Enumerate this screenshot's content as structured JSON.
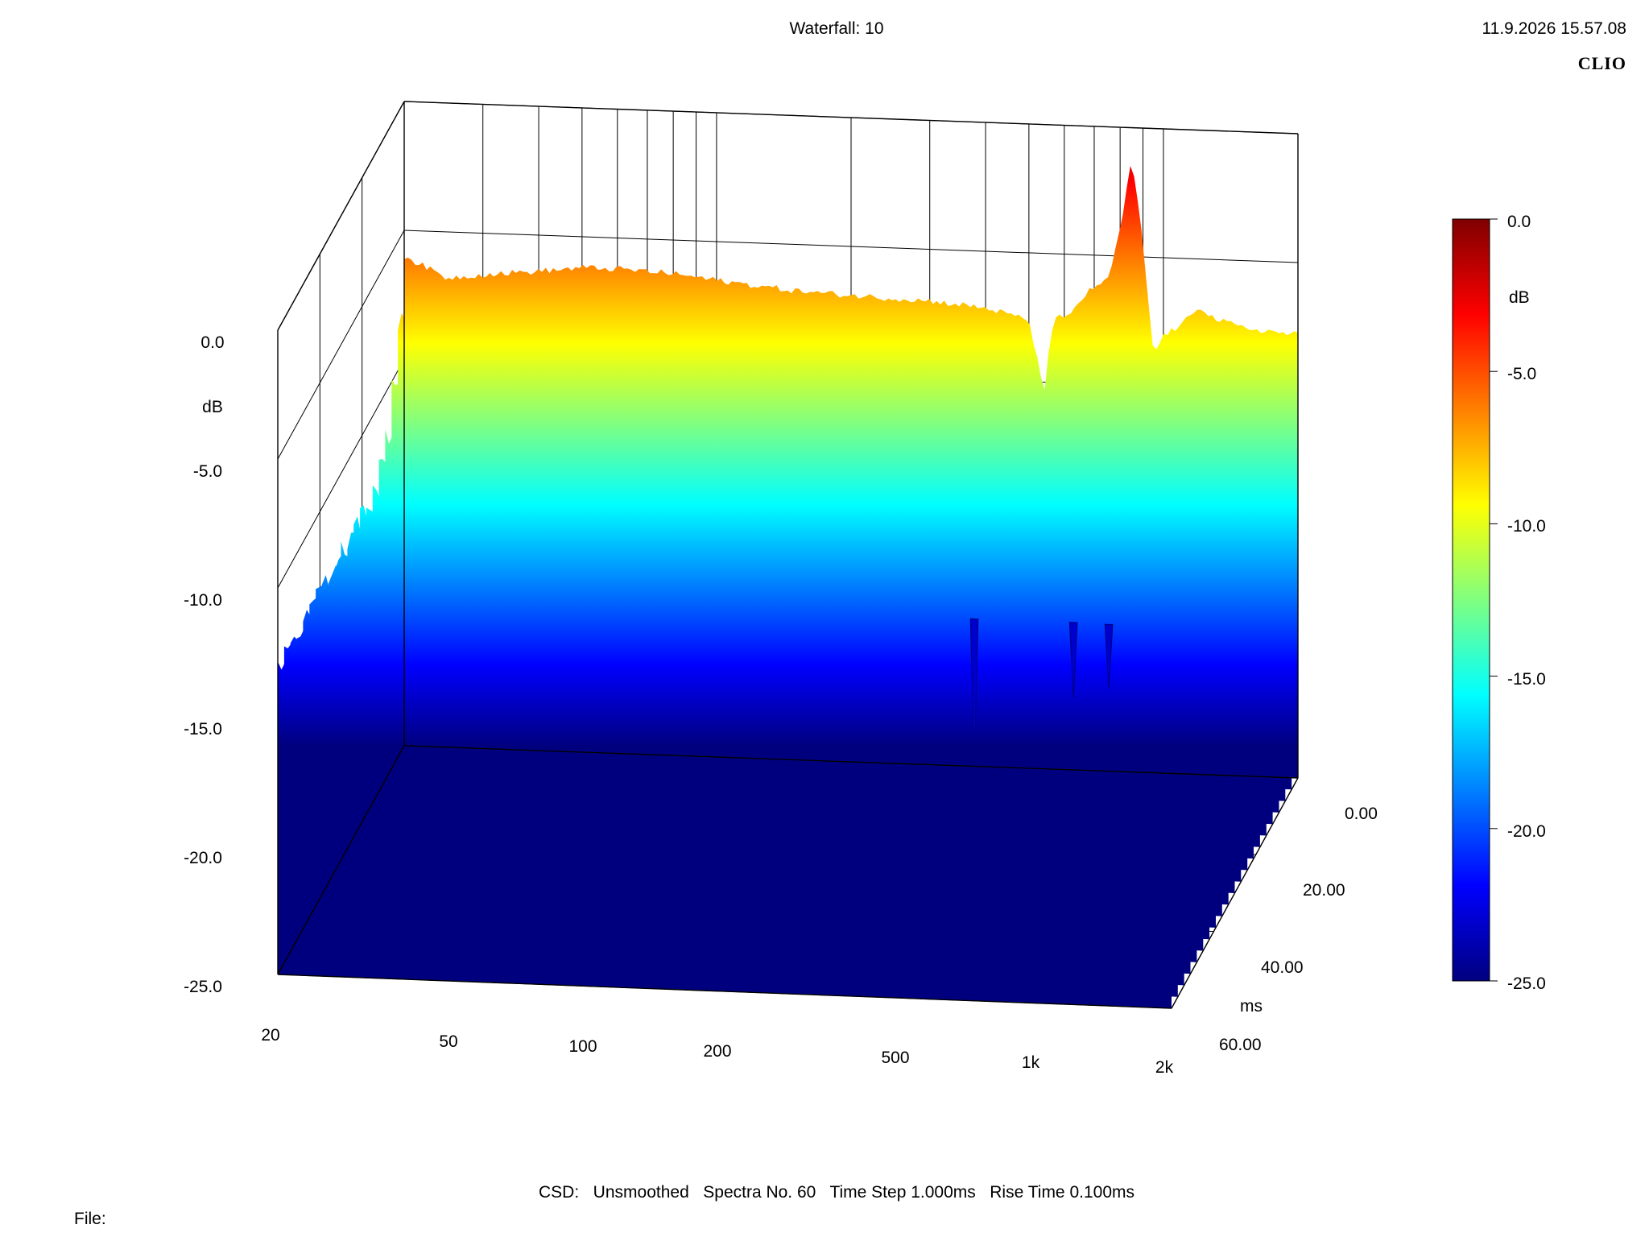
{
  "header": {
    "title": "Waterfall: 10",
    "datetime": "11.9.2026 15.57.08",
    "brand": "CLIO"
  },
  "footer": {
    "csd_line": "CSD:   Unsmoothed   Spectra No. 60   Time Step 1.000ms   Rise Time 0.100ms",
    "file_label": "File:"
  },
  "colors": {
    "axis": "#000000",
    "background": "#ffffff",
    "colormap": [
      "#7f0000",
      "#ff0000",
      "#ff8000",
      "#ffff00",
      "#80ff80",
      "#00ffff",
      "#0080ff",
      "#0000ff",
      "#00007f"
    ]
  },
  "chart_data": {
    "type": "waterfall",
    "title": "Waterfall: 10",
    "z_axis": {
      "label": "dB",
      "min": -25,
      "max": 0,
      "ticks": [
        "0.0",
        "-5.0",
        "-10.0",
        "-15.0",
        "-20.0",
        "-25.0"
      ]
    },
    "x_axis": {
      "scale": "log",
      "min": 20,
      "max": 2000,
      "ticks": [
        "20",
        "50",
        "100",
        "200",
        "500",
        "1k",
        "2k"
      ]
    },
    "y_axis": {
      "label": "ms",
      "min": 0,
      "max": 60,
      "ticks": [
        "0.00",
        "20.00",
        "40.00",
        "60.00"
      ]
    },
    "colorbar": {
      "label": "dB",
      "ticks": [
        "0.0",
        "-5.0",
        "-10.0",
        "-15.0",
        "-20.0",
        "-25.0"
      ]
    },
    "spectra_count": 60,
    "time_step_ms": 1.0,
    "rise_time_ms": 0.1,
    "first_spectrum": {
      "freq_hz": [
        20,
        25,
        30,
        40,
        50,
        60,
        80,
        100,
        150,
        200,
        300,
        400,
        500,
        520,
        540,
        560,
        580,
        600,
        650,
        700,
        750,
        800,
        850,
        900,
        950,
        1000,
        1100,
        1200,
        1300,
        1500,
        1700,
        2000
      ],
      "level_db": [
        -6.0,
        -6.8,
        -6.6,
        -6.4,
        -6.2,
        -6.2,
        -6.3,
        -6.5,
        -6.8,
        -6.9,
        -7.0,
        -7.2,
        -7.6,
        -9.0,
        -10.5,
        -8.0,
        -7.4,
        -7.6,
        -6.8,
        -6.2,
        -6.0,
        -4.0,
        -1.2,
        -4.5,
        -8.8,
        -8.0,
        -7.6,
        -6.8,
        -7.3,
        -7.6,
        -7.7,
        -7.8
      ]
    },
    "late_spectrum": {
      "freq_hz": [
        20,
        30,
        50,
        100,
        200,
        400,
        500,
        700,
        1000,
        2000
      ],
      "level_db": [
        -13.0,
        -12.8,
        -13.5,
        -13.8,
        -14.0,
        -14.2,
        -14.3,
        -14.2,
        -14.3,
        -14.3
      ]
    },
    "decay_notches": [
      {
        "freq_hz": 540,
        "min_db": -19.8
      },
      {
        "freq_hz": 900,
        "min_db": -17.2
      },
      {
        "freq_hz": 1080,
        "min_db": -16.8
      }
    ]
  }
}
